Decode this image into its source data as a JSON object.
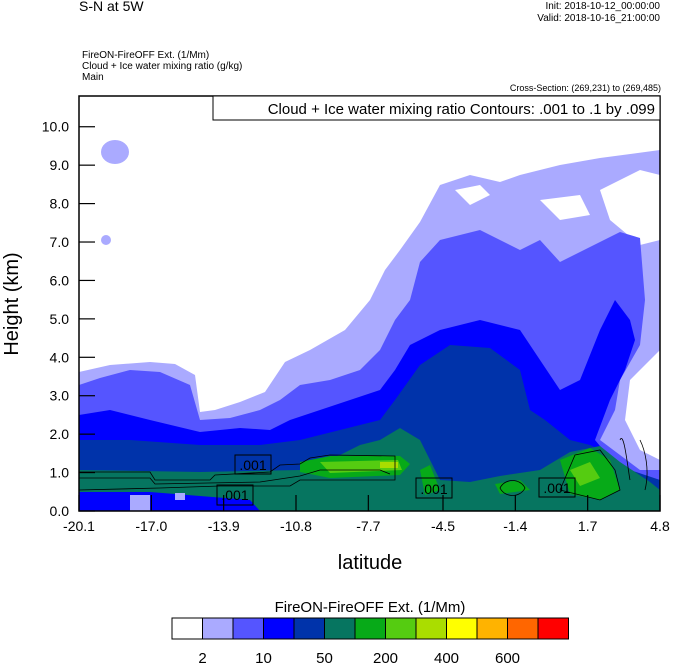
{
  "header": {
    "title": "S-N at 5W",
    "init": "Init: 2018-10-12_00:00:00",
    "valid": "Valid: 2018-10-16_21:00:00",
    "field1": "FireON-FireOFF Ext.   (1/Mm)",
    "field2": "Cloud + Ice water mixing ratio   (g/kg)",
    "domain": "Main",
    "cross_section": "Cross-Section: (269,231) to (269,485)"
  },
  "chart_data": {
    "type": "heatmap",
    "subtype": "filled contour with line contour overlay",
    "title": "Cloud + Ice water mixing ratio Contours: .001 to .1 by .099",
    "xlabel": "latitude",
    "ylabel": "Height (km)",
    "xlim": [
      -20.1,
      4.8
    ],
    "ylim": [
      0.0,
      10.8
    ],
    "x_ticks": [
      "-20.1",
      "-17.0",
      "-13.9",
      "-10.8",
      "-7.7",
      "-4.5",
      "-1.4",
      "1.7",
      "4.8"
    ],
    "x_tick_values": [
      -20.1,
      -17.0,
      -13.9,
      -10.8,
      -7.7,
      -4.5,
      -1.4,
      1.7,
      4.8
    ],
    "y_ticks": [
      "0.0",
      "1.0",
      "2.0",
      "3.0",
      "4.0",
      "5.0",
      "6.0",
      "7.0",
      "8.0",
      "9.0",
      "10.0"
    ],
    "y_tick_values": [
      0,
      1,
      2,
      3,
      4,
      5,
      6,
      7,
      8,
      9,
      10
    ],
    "contour_labels": [
      ".001",
      ".001",
      ".001",
      ".001"
    ],
    "colorbar": {
      "title": "FireON-FireOFF Ext.  (1/Mm)",
      "colors": [
        "#ffffff",
        "#aaaaff",
        "#5555ff",
        "#0000ff",
        "#0033aa",
        "#067560",
        "#07aa18",
        "#55cc11",
        "#aadd00",
        "#ffff00",
        "#ffb300",
        "#ff6600",
        "#ff0000"
      ],
      "labels": [
        "2",
        "10",
        "50",
        "200",
        "400",
        "600"
      ],
      "placement": "bottom"
    }
  }
}
